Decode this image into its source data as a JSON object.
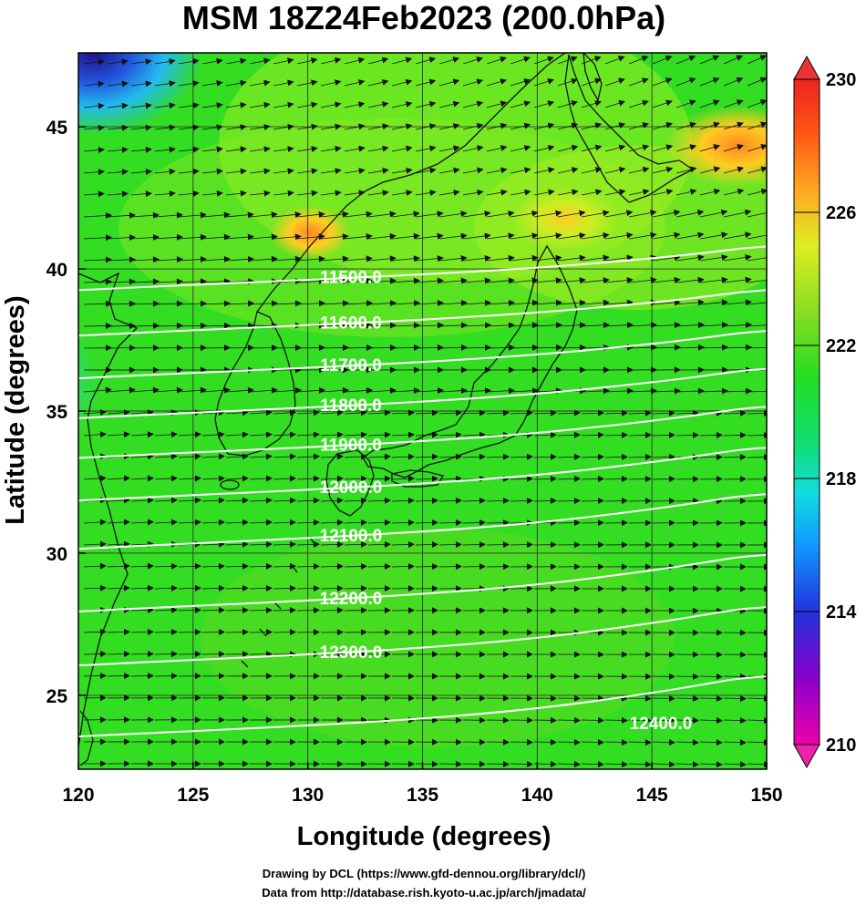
{
  "title": "MSM 18Z24Feb2023 (200.0hPa)",
  "xlabel": "Longitude (degrees)",
  "ylabel": "Latitude  (degrees)",
  "x_ticks": [
    "120",
    "125",
    "130",
    "135",
    "140",
    "145",
    "150"
  ],
  "y_ticks": [
    "25",
    "30",
    "35",
    "40",
    "45"
  ],
  "colorbar": {
    "ticks": [
      "230",
      "226",
      "222",
      "218",
      "214",
      "210"
    ],
    "min": 210,
    "max": 230,
    "colors": [
      "#ee00aa",
      "#8800cc",
      "#2233dd",
      "#1199ff",
      "#11dddd",
      "#11dd77",
      "#22dd22",
      "#88dd22",
      "#ddee22",
      "#ffaa22",
      "#ff4411",
      "#ee2222"
    ]
  },
  "contours": [
    {
      "label": "11500.0",
      "lat": 39.7
    },
    {
      "label": "11600.0",
      "lat": 38.1
    },
    {
      "label": "11700.0",
      "lat": 36.6
    },
    {
      "label": "11800.0",
      "lat": 35.2
    },
    {
      "label": "11900.0",
      "lat": 33.8
    },
    {
      "label": "12000.0",
      "lat": 32.3
    },
    {
      "label": "12100.0",
      "lat": 30.6
    },
    {
      "label": "12200.0",
      "lat": 28.4
    },
    {
      "label": "12300.0",
      "lat": 26.5
    },
    {
      "label": "12400.0",
      "lat": 24.0
    }
  ],
  "credits": {
    "line1": "Drawing by DCL (https://www.gfd-dennou.org/library/dcl/)",
    "line2": "Data from http://database.rish.kyoto-u.ac.jp/arch/jmadata/"
  },
  "map": {
    "lon_range": [
      120,
      150
    ],
    "lat_range": [
      22.4,
      47.6
    ],
    "grid": true,
    "field_colors": {
      "base": "#33dd22",
      "warm": "#aaee22",
      "hot": "#ffcc22",
      "cold": "#2222aa",
      "cool": "#11ccee"
    }
  }
}
